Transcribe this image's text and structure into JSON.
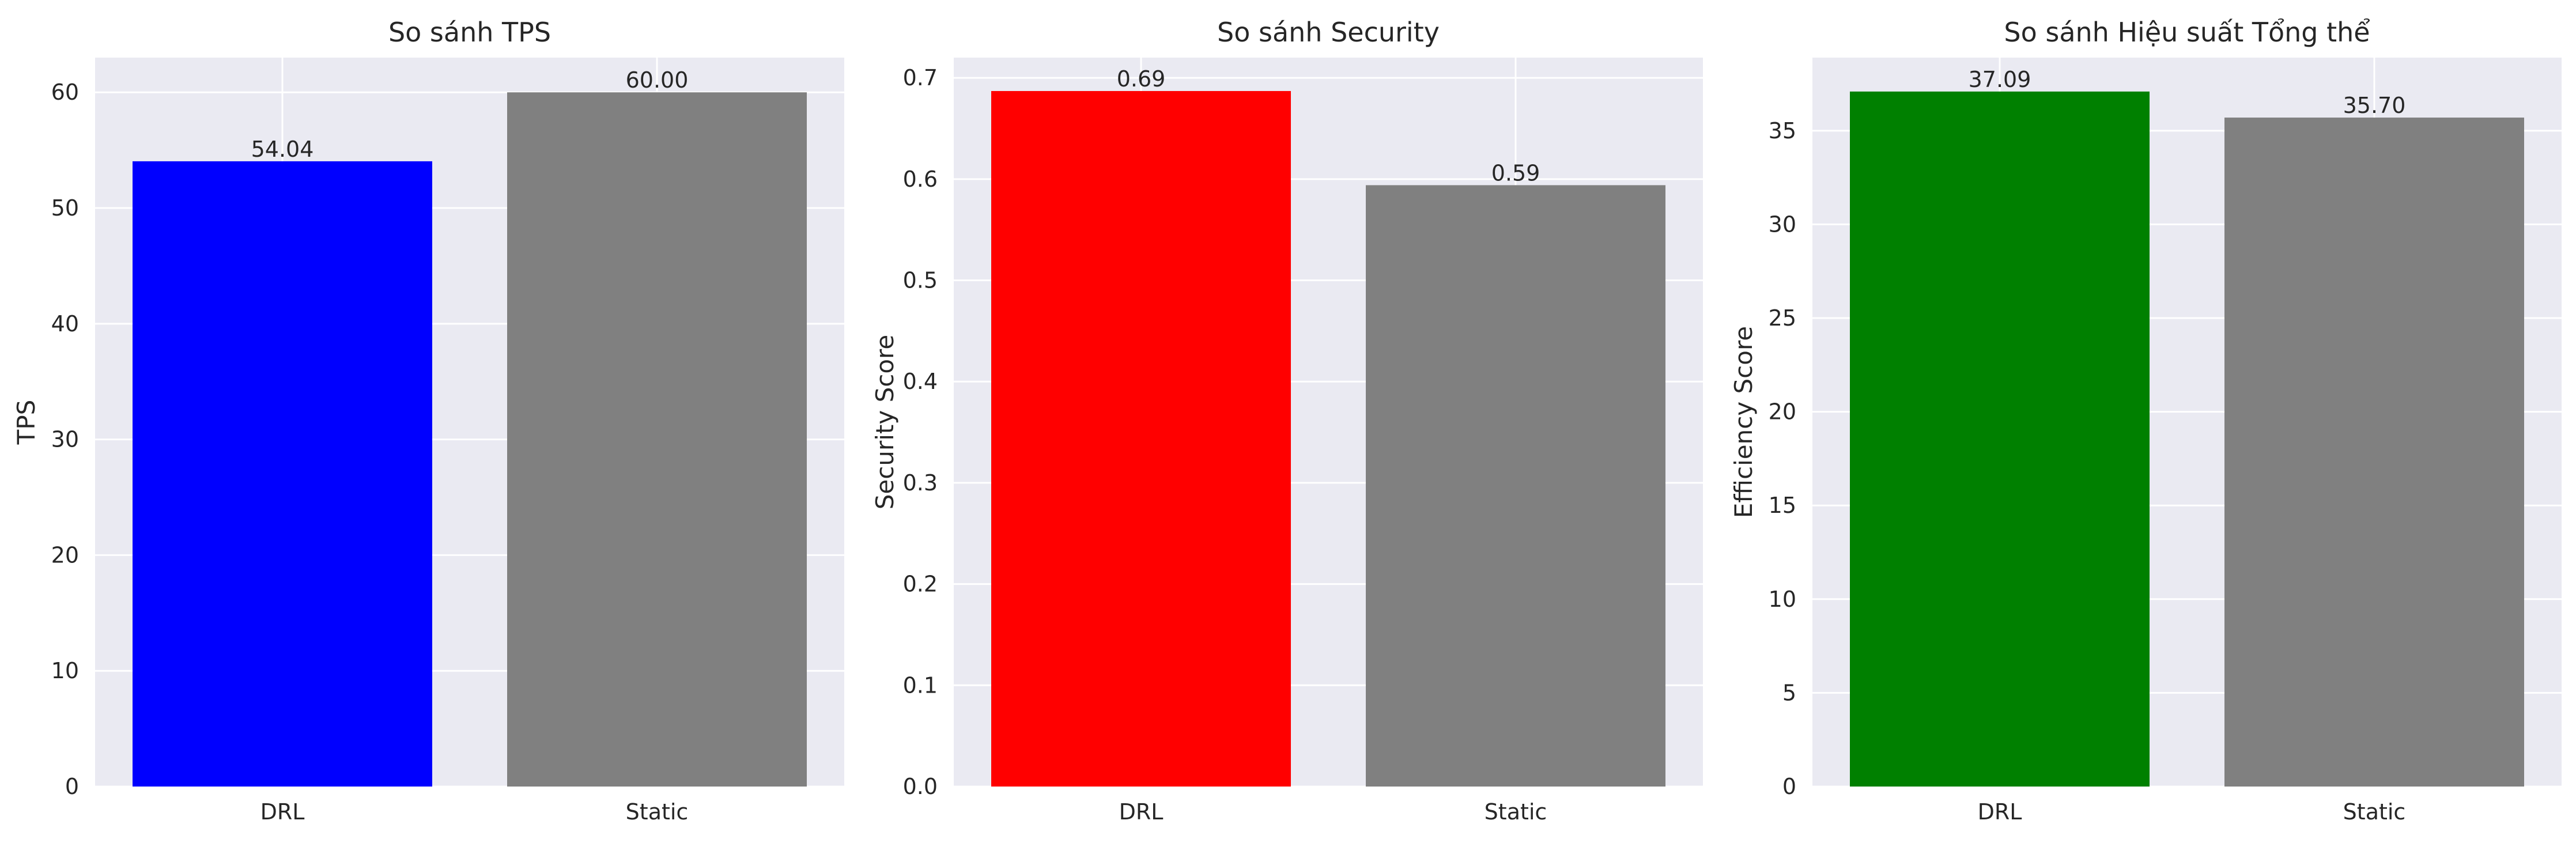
{
  "chart_data": [
    {
      "type": "bar",
      "title": "So sánh TPS",
      "xlabel": "",
      "ylabel": "TPS",
      "categories": [
        "DRL",
        "Static"
      ],
      "values": [
        54.04,
        60.0
      ],
      "value_labels": [
        "54.04",
        "60.00"
      ],
      "colors": [
        "#0000ff",
        "#808080"
      ],
      "ylim": [
        0,
        63
      ],
      "yticks": [
        0,
        10,
        20,
        30,
        40,
        50,
        60
      ],
      "ytick_labels": [
        "0",
        "10",
        "20",
        "30",
        "40",
        "50",
        "60"
      ],
      "grid": true
    },
    {
      "type": "bar",
      "title": "So sánh Security",
      "xlabel": "",
      "ylabel": "Security Score",
      "categories": [
        "DRL",
        "Static"
      ],
      "values": [
        0.687,
        0.594
      ],
      "value_labels": [
        "0.69",
        "0.59"
      ],
      "colors": [
        "#ff0000",
        "#808080"
      ],
      "ylim": [
        0,
        0.72
      ],
      "yticks": [
        0,
        0.1,
        0.2,
        0.3,
        0.4,
        0.5,
        0.6,
        0.7
      ],
      "ytick_labels": [
        "0.0",
        "0.1",
        "0.2",
        "0.3",
        "0.4",
        "0.5",
        "0.6",
        "0.7"
      ],
      "grid": true
    },
    {
      "type": "bar",
      "title": "So sánh Hiệu suất Tổng thể",
      "xlabel": "",
      "ylabel": "Efficiency Score",
      "categories": [
        "DRL",
        "Static"
      ],
      "values": [
        37.09,
        35.7
      ],
      "value_labels": [
        "37.09",
        "35.70"
      ],
      "colors": [
        "#008000",
        "#808080"
      ],
      "ylim": [
        0,
        38.9
      ],
      "yticks": [
        0,
        5,
        10,
        15,
        20,
        25,
        30,
        35
      ],
      "ytick_labels": [
        "0",
        "5",
        "10",
        "15",
        "20",
        "25",
        "30",
        "35"
      ],
      "grid": true
    }
  ]
}
